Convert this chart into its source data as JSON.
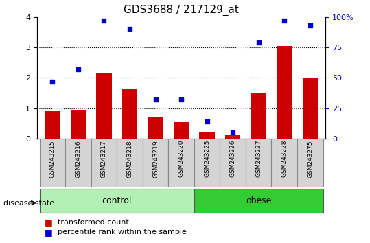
{
  "title": "GDS3688 / 217129_at",
  "samples": [
    "GSM243215",
    "GSM243216",
    "GSM243217",
    "GSM243218",
    "GSM243219",
    "GSM243220",
    "GSM243225",
    "GSM243226",
    "GSM243227",
    "GSM243228",
    "GSM243275"
  ],
  "bar_values": [
    0.9,
    0.95,
    2.15,
    1.65,
    0.72,
    0.55,
    0.2,
    0.12,
    1.5,
    3.05,
    2.0
  ],
  "scatter_values_pct": [
    47,
    57,
    97,
    90,
    32,
    32,
    14,
    5,
    79,
    97,
    93
  ],
  "bar_color": "#cc0000",
  "scatter_color": "#0000cc",
  "ylim_left": [
    0,
    4
  ],
  "ylim_right": [
    0,
    100
  ],
  "yticks_left": [
    0,
    1,
    2,
    3,
    4
  ],
  "yticks_right": [
    0,
    25,
    50,
    75,
    100
  ],
  "ytick_labels_right": [
    "0",
    "25",
    "50",
    "75",
    "100%"
  ],
  "groups": [
    {
      "label": "control",
      "start": 0,
      "end": 6,
      "color": "#b3f0b3"
    },
    {
      "label": "obese",
      "start": 6,
      "end": 11,
      "color": "#33cc33"
    }
  ],
  "group_bar_bg": "#d4d4d4",
  "disease_state_label": "disease state",
  "legend_bar_label": "transformed count",
  "legend_scatter_label": "percentile rank within the sample"
}
